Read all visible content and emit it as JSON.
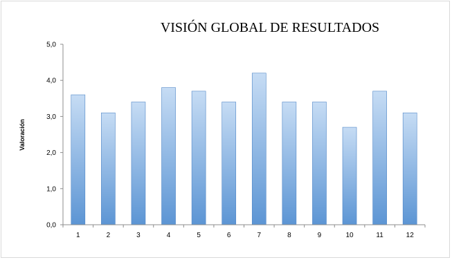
{
  "chart_data": {
    "type": "bar",
    "title": "VISIÓN GLOBAL DE RESULTADOS",
    "xlabel": "",
    "ylabel": "Valoración",
    "categories": [
      "1",
      "2",
      "3",
      "4",
      "5",
      "6",
      "7",
      "8",
      "9",
      "10",
      "11",
      "12"
    ],
    "values": [
      3.6,
      3.1,
      3.4,
      3.8,
      3.7,
      3.4,
      4.2,
      3.4,
      3.4,
      2.7,
      3.7,
      3.1
    ],
    "ylim": [
      0,
      5
    ],
    "yticks": [
      "0,0",
      "1,0",
      "2,0",
      "3,0",
      "4,0",
      "5,0"
    ],
    "grid": false,
    "legend": "none",
    "colors": {
      "bar_top": "#c6dcf4",
      "bar_bottom": "#5c95d4",
      "bar_edge": "#4f86c6",
      "axis": "#8c8c8c"
    }
  }
}
